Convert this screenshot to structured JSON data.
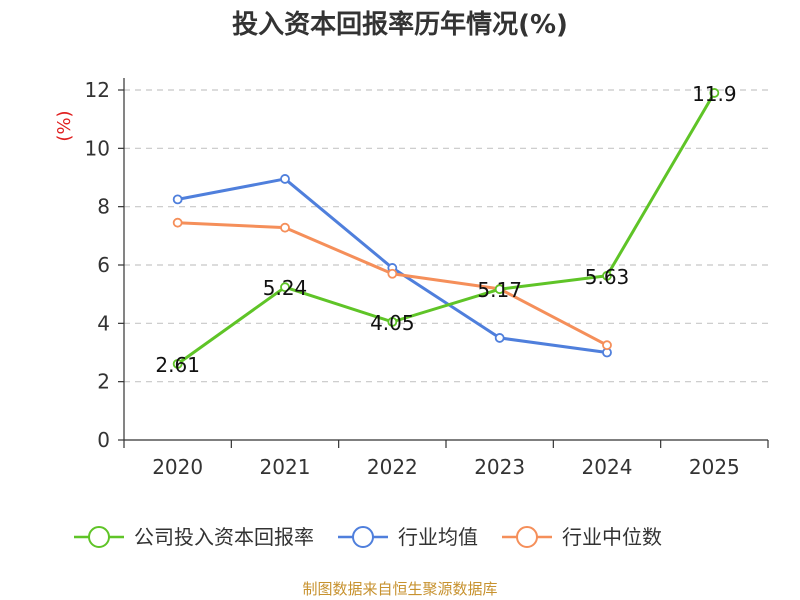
{
  "chart_data": {
    "type": "line",
    "title": "投入资本回报率历年情况(%)",
    "ylabel": "(%)",
    "xlabel": "",
    "ylim": [
      0,
      12
    ],
    "yticks": [
      0,
      2,
      4,
      6,
      8,
      10,
      12
    ],
    "categories": [
      "2020",
      "2021",
      "2022",
      "2023",
      "2024",
      "2025"
    ],
    "series": [
      {
        "name": "公司投入资本回报率",
        "color": "#5fc427",
        "values": [
          2.61,
          5.24,
          4.05,
          5.17,
          5.63,
          11.9
        ],
        "labels": [
          "2.61",
          "5.24",
          "4.05",
          "5.17",
          "5.63",
          "11.9"
        ]
      },
      {
        "name": "行业均值",
        "color": "#4f7fdc",
        "values": [
          8.25,
          8.95,
          5.9,
          3.5,
          3.0,
          null
        ]
      },
      {
        "name": "行业中位数",
        "color": "#f58f5a",
        "values": [
          7.45,
          7.28,
          5.7,
          5.18,
          3.25,
          null
        ]
      }
    ],
    "grid": true,
    "legend_position": "bottom"
  },
  "source_note": "制图数据来自恒生聚源数据库"
}
